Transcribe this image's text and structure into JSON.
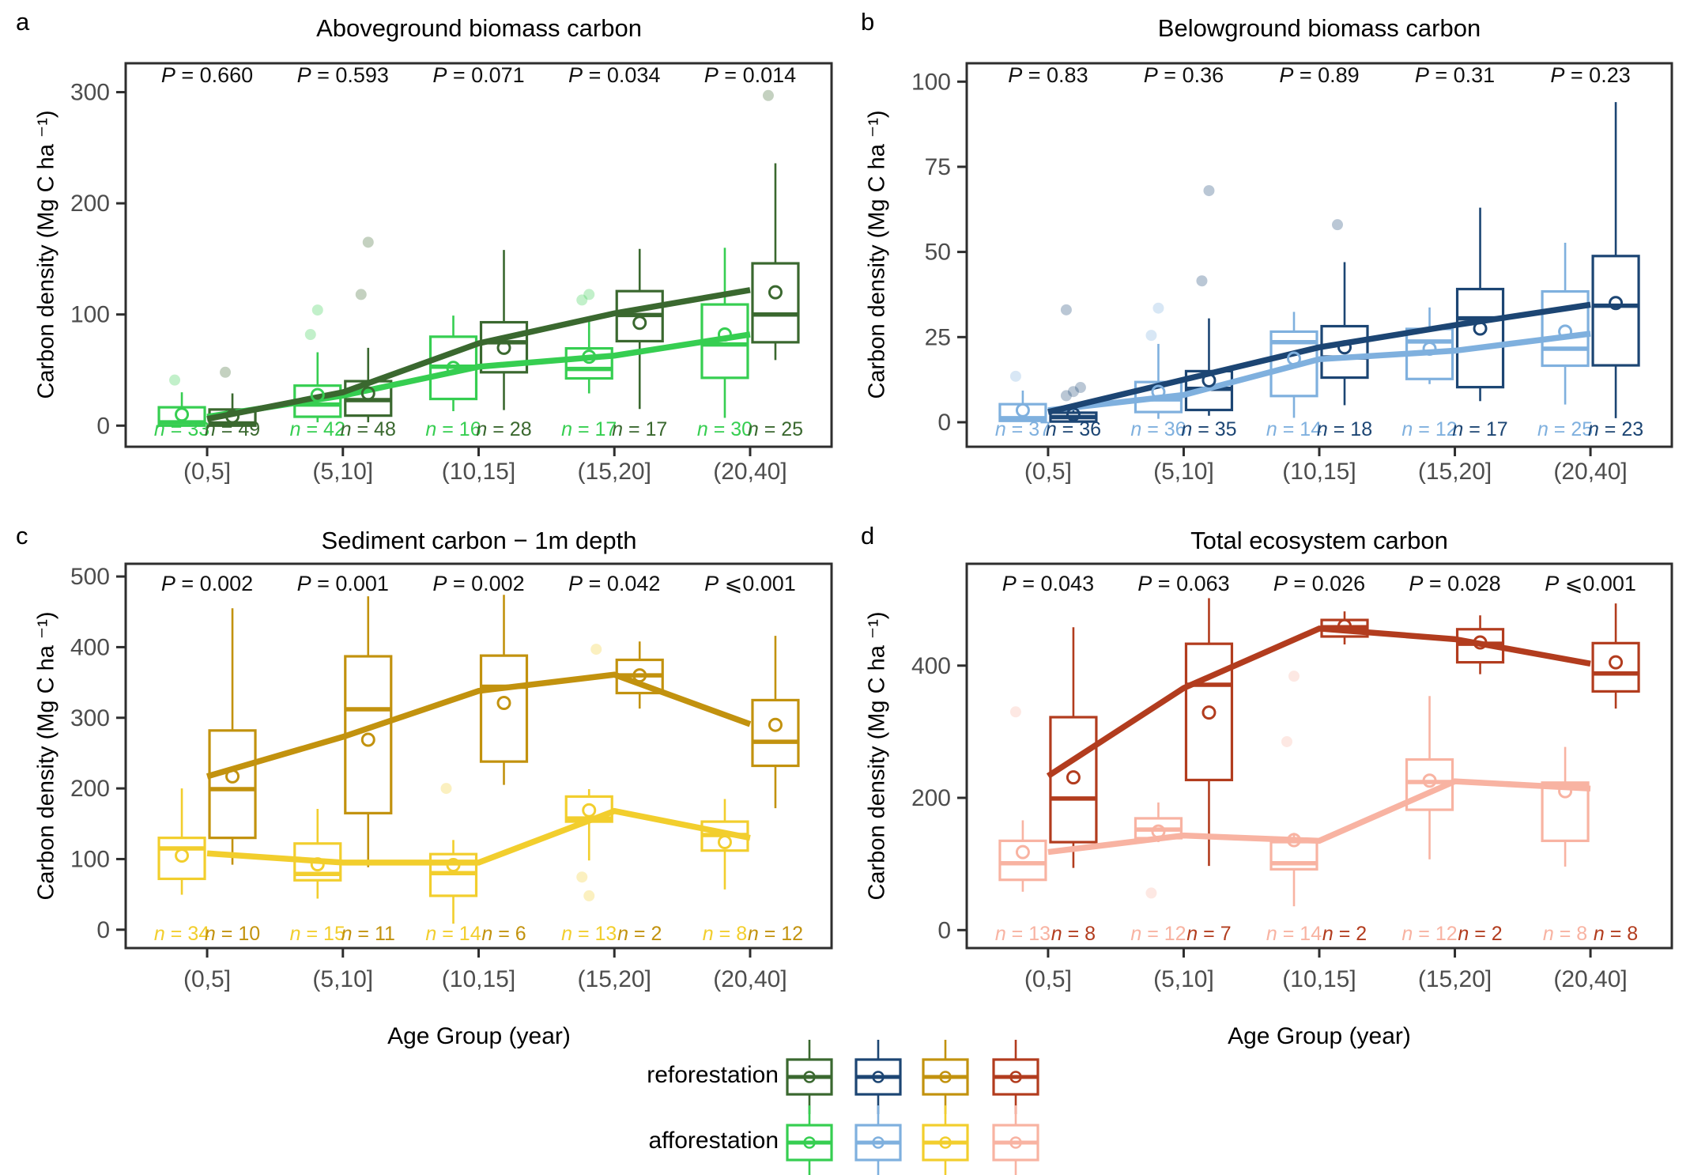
{
  "figure": {
    "x_axis_title": "Age Group (year)",
    "y_axis_title": "Carbon density (Mg C ha ⁻¹)",
    "colors": {
      "axis_text": "#4d4d4d",
      "border": "#2e2e2e",
      "text": "#111111"
    },
    "legend": {
      "rows": [
        {
          "label": "reforestation",
          "colors": [
            "#3A682F",
            "#1C4573",
            "#C2920E",
            "#B23C1E"
          ]
        },
        {
          "label": "afforestation",
          "colors": [
            "#36CE51",
            "#7FB0DE",
            "#F2CE2D",
            "#F8B3A2"
          ]
        }
      ]
    }
  },
  "chart_data": [
    {
      "type": "box",
      "letter": "a",
      "title": "Aboveground biomass carbon",
      "ylabel": "Carbon density (Mg C ha ⁻¹)",
      "categories": [
        "(0,5]",
        "(5,10]",
        "(10,15]",
        "(15,20]",
        "(20,40]"
      ],
      "yticks": [
        0,
        100,
        200,
        300
      ],
      "ylim": [
        -19,
        326
      ],
      "p_values": [
        "P = 0.660",
        "P = 0.593",
        "P = 0.071",
        "P = 0.034",
        "P = 0.014"
      ],
      "series": [
        {
          "name": "afforestation",
          "color": "#36CE51",
          "n": [
            33,
            42,
            16,
            17,
            30
          ],
          "boxes": [
            [
              0,
              0,
              3,
              16.5,
              30
            ],
            [
              3,
              8,
              19,
              36,
              66
            ],
            [
              13,
              24,
              53,
              80,
              99
            ],
            [
              29,
              42.5,
              51,
              69.5,
              97
            ],
            [
              7,
              43,
              73,
              109,
              160
            ]
          ],
          "means": [
            10,
            27.5,
            52,
            62,
            82
          ],
          "outliers": [
            [
              41
            ],
            [
              82,
              104
            ],
            [],
            [
              113,
              118
            ],
            []
          ],
          "trend": [
            8,
            27,
            53,
            63,
            82
          ]
        },
        {
          "name": "reforestation",
          "color": "#3A682F",
          "n": [
            49,
            48,
            28,
            17,
            25
          ],
          "boxes": [
            [
              0,
              0,
              2,
              14.5,
              29
            ],
            [
              3,
              9,
              23,
              40,
              70
            ],
            [
              14,
              48,
              75,
              93,
              158
            ],
            [
              15,
              76,
              99.5,
              121,
              159
            ],
            [
              59,
              75,
              100,
              146,
              236
            ]
          ],
          "means": [
            8.3,
            29,
            70,
            92.5,
            120
          ],
          "outliers": [
            [
              48
            ],
            [
              118,
              165
            ],
            [],
            [],
            [
              297
            ]
          ],
          "trend": [
            6,
            30,
            74,
            101,
            122
          ]
        }
      ]
    },
    {
      "type": "box",
      "letter": "b",
      "title": "Belowground biomass carbon",
      "ylabel": "Carbon density (Mg C ha ⁻¹)",
      "categories": [
        "(0,5]",
        "(5,10]",
        "(10,15]",
        "(15,20]",
        "(20,40]"
      ],
      "yticks": [
        0,
        25,
        50,
        75,
        100
      ],
      "ylim": [
        -7.2,
        105.4
      ],
      "p_values": [
        "P = 0.83",
        "P = 0.36",
        "P = 0.89",
        "P = 0.31",
        "P = 0.23"
      ],
      "series": [
        {
          "name": "afforestation",
          "color": "#7FB0DE",
          "n": [
            37,
            36,
            14,
            12,
            25
          ],
          "boxes": [
            [
              0.2,
              0.4,
              1.2,
              5.3,
              9.3
            ],
            [
              1,
              3,
              6.7,
              11.8,
              23
            ],
            [
              1.3,
              7.7,
              23.5,
              26.6,
              32.4
            ],
            [
              11.2,
              12.7,
              23.7,
              27.4,
              33.7
            ],
            [
              5.2,
              16.6,
              21.6,
              38.4,
              52.7
            ]
          ],
          "means": [
            3.5,
            8.9,
            18.7,
            21.6,
            26.6
          ],
          "outliers": [
            [
              13.5
            ],
            [
              25.5,
              33.5
            ],
            [],
            [],
            []
          ],
          "trend": [
            3.5,
            8,
            18.5,
            21,
            26
          ]
        },
        {
          "name": "reforestation",
          "color": "#1C4573",
          "n": [
            36,
            35,
            18,
            17,
            23
          ],
          "boxes": [
            [
              0,
              0.2,
              1.5,
              2.8,
              5
            ],
            [
              1.9,
              3.6,
              9.8,
              15,
              30.5
            ],
            [
              5,
              13.1,
              19,
              28.2,
              47
            ],
            [
              6.2,
              10.3,
              30.5,
              39.1,
              63
            ],
            [
              1.2,
              16.7,
              34.2,
              48.8,
              94
            ]
          ],
          "means": [
            2.3,
            12.3,
            22,
            27.5,
            35
          ],
          "outliers": [
            [
              7.8,
              9,
              10.2,
              33
            ],
            [
              41.5,
              68
            ],
            [
              58
            ],
            [],
            []
          ],
          "trend": [
            3,
            12.5,
            22,
            28.5,
            34.5
          ]
        }
      ]
    },
    {
      "type": "box",
      "letter": "c",
      "title": "Sediment carbon − 1m depth",
      "ylabel": "Carbon density (Mg C ha ⁻¹)",
      "categories": [
        "(0,5]",
        "(5,10]",
        "(10,15]",
        "(15,20]",
        "(20,40]"
      ],
      "yticks": [
        0,
        100,
        200,
        300,
        400,
        500
      ],
      "ylim": [
        -26,
        518
      ],
      "p_values": [
        "P = 0.002",
        "P = 0.001",
        "P = 0.002",
        "P = 0.042",
        "P ⩽0.001"
      ],
      "series": [
        {
          "name": "afforestation",
          "color": "#F2CE2D",
          "n": [
            34,
            15,
            14,
            13,
            8
          ],
          "boxes": [
            [
              49.5,
              72,
              115,
              130,
              200
            ],
            [
              44,
              70,
              79,
              122,
              171
            ],
            [
              8.5,
              48,
              80,
              107,
              127
            ],
            [
              98,
              153,
              157.5,
              188.5,
              199
            ],
            [
              57,
              112,
              134,
              153,
              185
            ]
          ],
          "means": [
            105,
            92.5,
            91.5,
            169,
            124
          ],
          "outliers": [
            [],
            [],
            [
              200
            ],
            [
              74.5,
              48,
              397
            ],
            []
          ],
          "trend": [
            108,
            95,
            95,
            168,
            130
          ]
        },
        {
          "name": "reforestation",
          "color": "#C2920E",
          "n": [
            10,
            11,
            6,
            2,
            12
          ],
          "boxes": [
            [
              92,
              130,
              199,
              282,
              455
            ],
            [
              88.5,
              165,
              312,
              387,
              472
            ],
            [
              205,
              238,
              344,
              388,
              474
            ],
            [
              313,
              335,
              360,
              382,
              408
            ],
            [
              172,
              232,
              266,
              325,
              416
            ]
          ],
          "means": [
            217,
            269,
            321,
            360,
            290
          ],
          "outliers": [
            [],
            [],
            [],
            [],
            []
          ],
          "trend": [
            217,
            273,
            338,
            361,
            291
          ]
        }
      ]
    },
    {
      "type": "box",
      "letter": "d",
      "title": "Total ecosystem carbon",
      "ylabel": "Carbon density (Mg C ha ⁻¹)",
      "categories": [
        "(0,5]",
        "(5,10]",
        "(10,15]",
        "(15,20]",
        "(20,40]"
      ],
      "yticks": [
        0,
        200,
        400
      ],
      "ylim": [
        -27.2,
        554
      ],
      "p_values": [
        "P = 0.043",
        "P = 0.063",
        "P = 0.026",
        "P = 0.028",
        "P ⩽0.001"
      ],
      "series": [
        {
          "name": "afforestation",
          "color": "#F8B3A2",
          "n": [
            13,
            12,
            14,
            12,
            8
          ],
          "boxes": [
            [
              58,
              76,
              101,
              135,
              166
            ],
            [
              133,
              139,
              152,
              169,
              193
            ],
            [
              36,
              92,
              101,
              133,
              147
            ],
            [
              107,
              182,
              224,
              258,
              354
            ],
            [
              96,
              135,
              220,
              223,
              277
            ]
          ],
          "means": [
            118,
            149,
            136,
            226,
            210
          ],
          "outliers": [
            [
              330
            ],
            [
              56
            ],
            [
              285,
              384
            ],
            [],
            []
          ],
          "trend": [
            118,
            143,
            135,
            225,
            214
          ]
        },
        {
          "name": "reforestation",
          "color": "#B23C1E",
          "n": [
            8,
            7,
            2,
            2,
            8
          ],
          "boxes": [
            [
              94,
              133,
              199,
              322,
              458
            ],
            [
              97,
              227,
              371,
              433,
              502
            ],
            [
              432,
              444,
              458,
              469,
              482
            ],
            [
              387,
              405,
              433,
              455,
              476
            ],
            [
              335,
              361,
              388,
              434,
              494
            ]
          ],
          "means": [
            231,
            329,
            460,
            435,
            405
          ],
          "outliers": [
            [],
            [],
            [],
            [],
            []
          ],
          "trend": [
            233,
            366,
            456,
            440,
            403
          ]
        }
      ]
    }
  ]
}
